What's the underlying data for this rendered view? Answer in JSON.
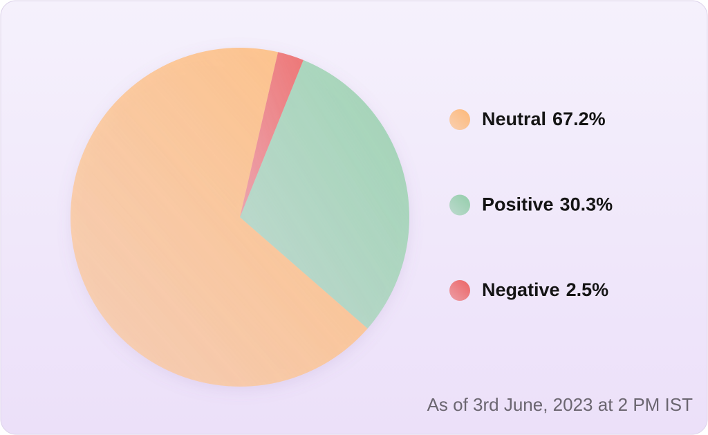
{
  "chart_data": {
    "type": "pie",
    "categories": [
      "Neutral",
      "Positive",
      "Negative"
    ],
    "values": [
      67.2,
      30.3,
      2.5
    ],
    "value_labels": [
      "67.2%",
      "30.3%",
      "2.5%"
    ],
    "colors": [
      "#fdb877",
      "#93cdaa",
      "#eb6464"
    ],
    "annotation": "As of 3rd June, 2023 at 2 PM IST"
  }
}
